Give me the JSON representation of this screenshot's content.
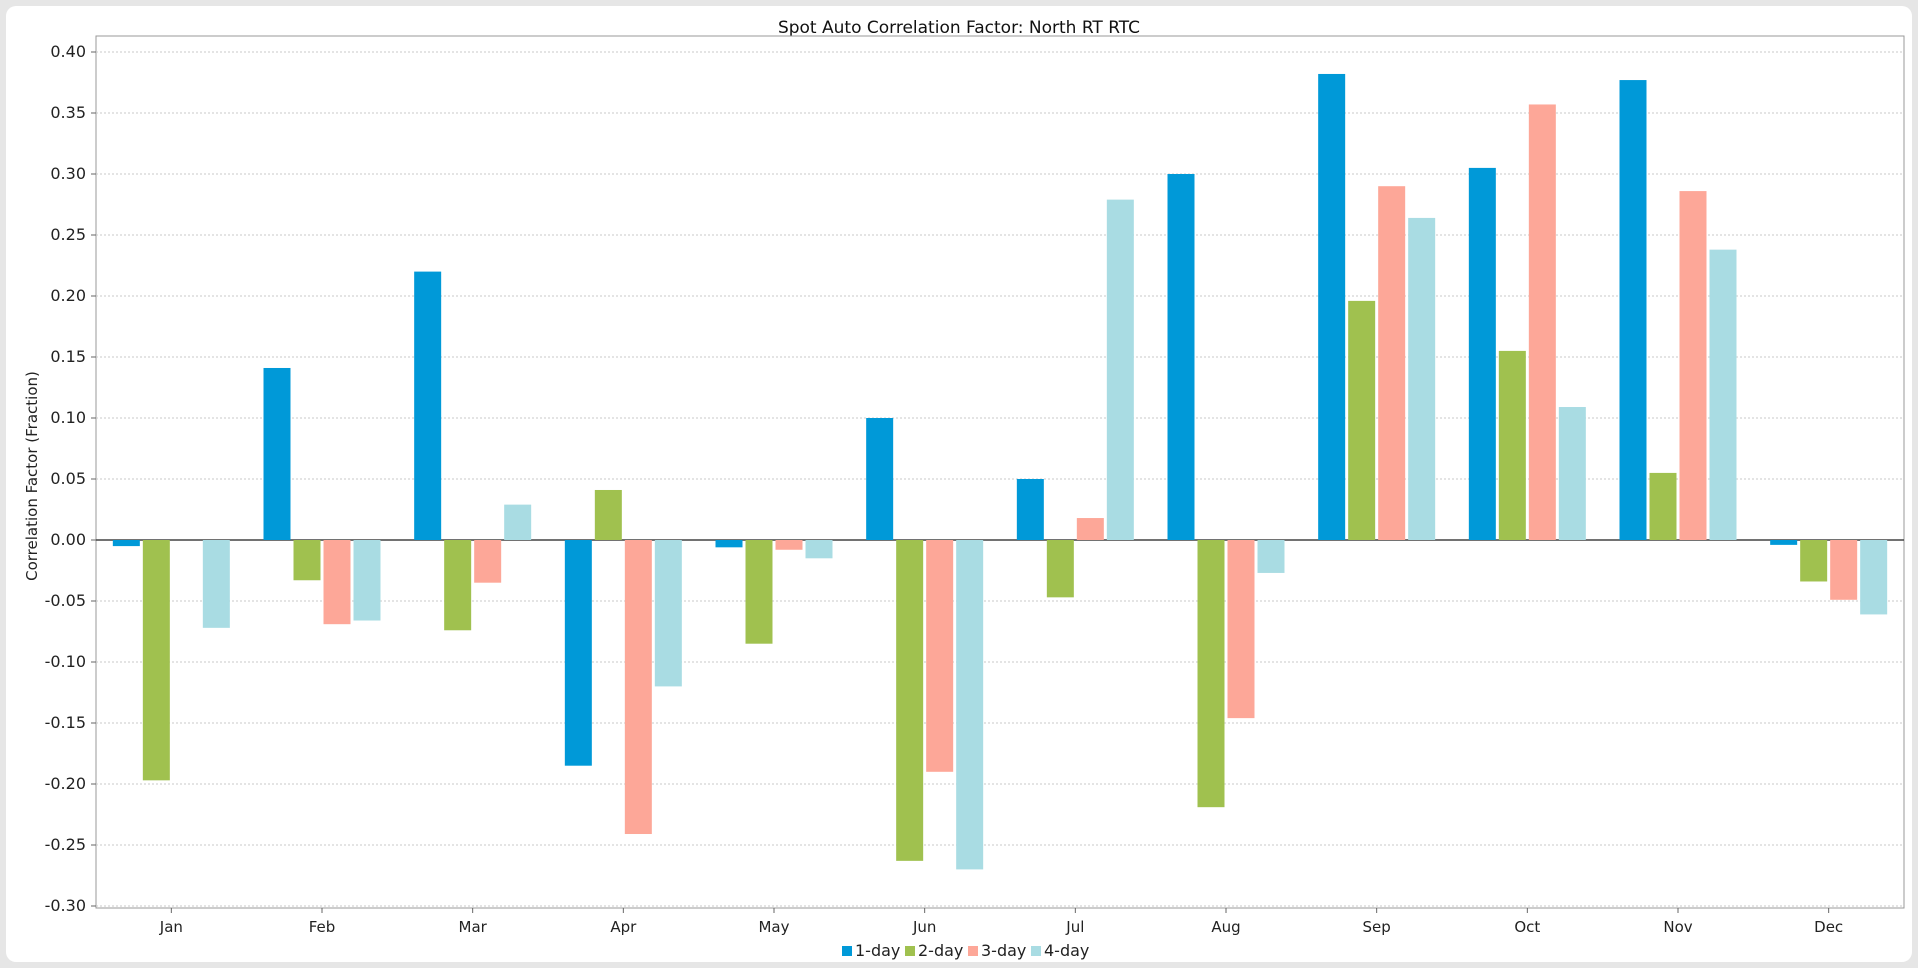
{
  "chart_data": {
    "type": "bar",
    "title": "Spot Auto Correlation Factor: North RT RTC",
    "xlabel": "",
    "ylabel": "Correlation Factor (Fraction)",
    "ylim": [
      -0.3,
      0.4
    ],
    "yticks": [
      0.4,
      0.35,
      0.3,
      0.25,
      0.2,
      0.15,
      0.1,
      0.05,
      0.0,
      -0.05,
      -0.1,
      -0.15,
      -0.2,
      -0.25,
      -0.3
    ],
    "ytick_labels": [
      "0.40",
      "0.35",
      "0.30",
      "0.25",
      "0.20",
      "0.15",
      "0.10",
      "0.05",
      "0.00",
      "-0.05",
      "-0.10",
      "-0.15",
      "-0.20",
      "-0.25",
      "-0.30"
    ],
    "grid": true,
    "legend": "bottom-center",
    "categories": [
      "Jan",
      "Feb",
      "Mar",
      "Apr",
      "May",
      "Jun",
      "Jul",
      "Aug",
      "Sep",
      "Oct",
      "Nov",
      "Dec"
    ],
    "series": [
      {
        "name": "1-day",
        "color": "#0099d8",
        "values": [
          -0.005,
          0.141,
          0.22,
          -0.185,
          -0.006,
          0.1,
          0.05,
          0.3,
          0.382,
          0.305,
          0.377,
          -0.004
        ]
      },
      {
        "name": "2-day",
        "color": "#a0c14f",
        "values": [
          -0.197,
          -0.033,
          -0.074,
          0.041,
          -0.085,
          -0.263,
          -0.047,
          -0.219,
          0.196,
          0.155,
          0.055,
          -0.034
        ]
      },
      {
        "name": "3-day",
        "color": "#fda798",
        "values": [
          0.0,
          -0.069,
          -0.035,
          -0.241,
          -0.008,
          -0.19,
          0.018,
          -0.146,
          0.29,
          0.357,
          0.286,
          -0.049
        ]
      },
      {
        "name": "4-day",
        "color": "#a9dce3",
        "values": [
          -0.072,
          -0.066,
          0.029,
          -0.12,
          -0.015,
          -0.27,
          0.279,
          -0.027,
          0.264,
          0.109,
          0.238,
          -0.061
        ]
      }
    ]
  }
}
